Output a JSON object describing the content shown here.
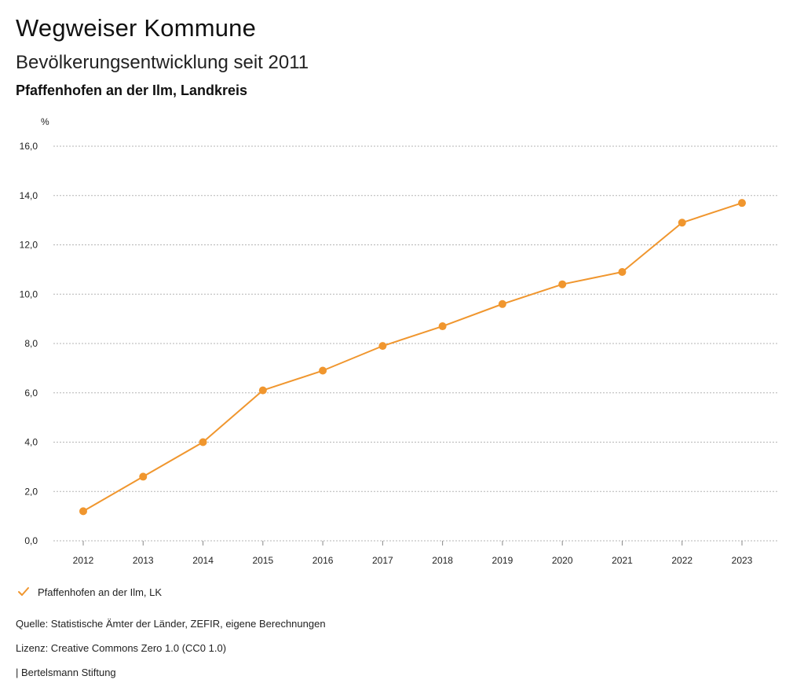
{
  "header": {
    "title": "Wegweiser Kommune",
    "subtitle": "Bevölkerungsentwicklung seit 2011",
    "region": "Pfaffenhofen an der Ilm, Landkreis"
  },
  "legend": {
    "label": "Pfaffenhofen an der Ilm, LK",
    "icon": "check-icon"
  },
  "footer": {
    "source": "Quelle: Statistische Ämter der Länder, ZEFIR, eigene Berechnungen",
    "license": "Lizenz: Creative Commons Zero 1.0 (CC0 1.0)",
    "publisher": "| Bertelsmann Stiftung"
  },
  "colors": {
    "series": "#F0962E",
    "grid": "#b5b5b5"
  },
  "chart_data": {
    "type": "line",
    "title": "Bevölkerungsentwicklung seit 2011",
    "subtitle": "Pfaffenhofen an der Ilm, Landkreis",
    "xlabel": "",
    "ylabel": "%",
    "ylim": [
      0,
      16
    ],
    "yticks": [
      "0,0",
      "2,0",
      "4,0",
      "6,0",
      "8,0",
      "10,0",
      "12,0",
      "14,0",
      "16,0"
    ],
    "grid": true,
    "legend_position": "bottom-left",
    "categories": [
      "2012",
      "2013",
      "2014",
      "2015",
      "2016",
      "2017",
      "2018",
      "2019",
      "2020",
      "2021",
      "2022",
      "2023"
    ],
    "series": [
      {
        "name": "Pfaffenhofen an der Ilm, LK",
        "values": [
          1.2,
          2.6,
          4.0,
          6.1,
          6.9,
          7.9,
          8.7,
          9.6,
          10.4,
          10.9,
          12.9,
          13.7
        ]
      }
    ]
  }
}
